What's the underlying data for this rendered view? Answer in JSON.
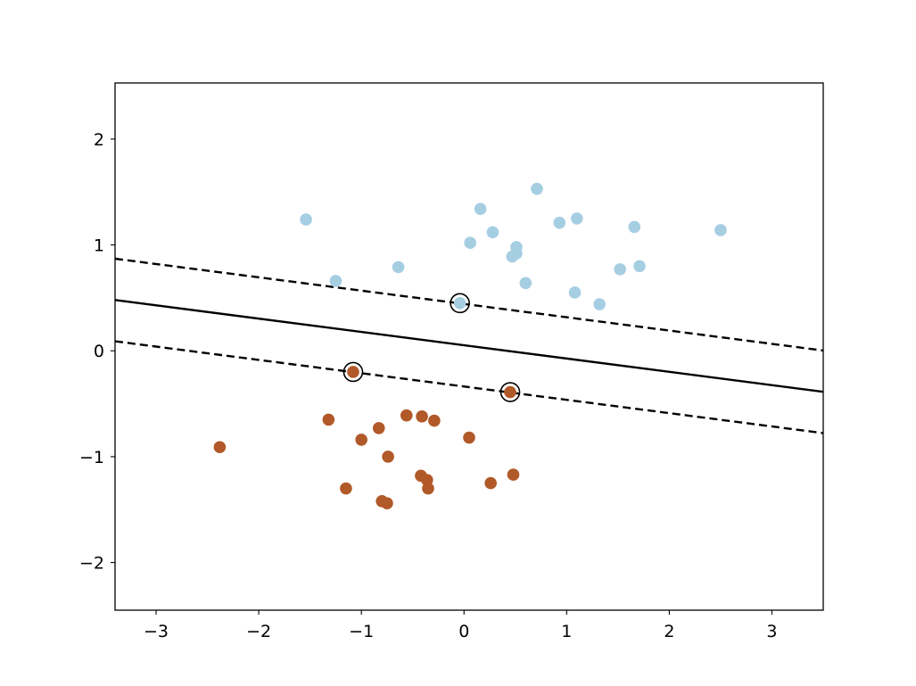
{
  "chart_data": {
    "type": "scatter",
    "title": "",
    "xlabel": "",
    "ylabel": "",
    "xlim": [
      -3.4,
      3.5
    ],
    "ylim": [
      -2.45,
      2.53
    ],
    "grid": false,
    "x_ticks": [
      {
        "value": -3,
        "label": "−3"
      },
      {
        "value": -2,
        "label": "−2"
      },
      {
        "value": -1,
        "label": "−1"
      },
      {
        "value": 0,
        "label": "0"
      },
      {
        "value": 1,
        "label": "1"
      },
      {
        "value": 2,
        "label": "2"
      },
      {
        "value": 3,
        "label": "3"
      }
    ],
    "y_ticks": [
      {
        "value": -2,
        "label": "−2"
      },
      {
        "value": -1,
        "label": "−1"
      },
      {
        "value": 0,
        "label": "0"
      },
      {
        "value": 1,
        "label": "1"
      },
      {
        "value": 2,
        "label": "2"
      }
    ],
    "series": [
      {
        "color": "#a6cee3",
        "points": [
          [
            -1.54,
            1.24
          ],
          [
            -1.25,
            0.66
          ],
          [
            -0.64,
            0.79
          ],
          [
            -0.04,
            0.45
          ],
          [
            0.06,
            1.02
          ],
          [
            0.16,
            1.34
          ],
          [
            0.28,
            1.12
          ],
          [
            0.47,
            0.89
          ],
          [
            0.51,
            0.98
          ],
          [
            0.51,
            0.92
          ],
          [
            0.6,
            0.64
          ],
          [
            0.71,
            1.53
          ],
          [
            0.93,
            1.21
          ],
          [
            1.08,
            0.55
          ],
          [
            1.1,
            1.25
          ],
          [
            1.32,
            0.44
          ],
          [
            1.52,
            0.77
          ],
          [
            1.66,
            1.17
          ],
          [
            1.71,
            0.8
          ],
          [
            2.5,
            1.14
          ]
        ]
      },
      {
        "color": "#b15928",
        "points": [
          [
            -2.38,
            -0.91
          ],
          [
            -1.32,
            -0.65
          ],
          [
            -1.15,
            -1.3
          ],
          [
            -1.08,
            -0.2
          ],
          [
            -1.0,
            -0.84
          ],
          [
            -0.83,
            -0.73
          ],
          [
            -0.8,
            -1.42
          ],
          [
            -0.75,
            -1.44
          ],
          [
            -0.74,
            -1.0
          ],
          [
            -0.56,
            -0.61
          ],
          [
            -0.42,
            -1.18
          ],
          [
            -0.41,
            -0.62
          ],
          [
            -0.36,
            -1.22
          ],
          [
            -0.35,
            -1.3
          ],
          [
            -0.29,
            -0.66
          ],
          [
            0.05,
            -0.82
          ],
          [
            0.26,
            -1.25
          ],
          [
            0.45,
            -0.39
          ],
          [
            0.48,
            -1.17
          ]
        ]
      }
    ],
    "decision_boundary": {
      "slope": -0.1257,
      "intercept": 0.0526,
      "style": "solid",
      "color": "#000000"
    },
    "margins": [
      {
        "slope": -0.1257,
        "intercept": 0.4426,
        "style": "dashed",
        "color": "#000000"
      },
      {
        "slope": -0.1257,
        "intercept": -0.3374,
        "style": "dashed",
        "color": "#000000"
      }
    ],
    "support_vectors": [
      [
        -0.04,
        0.45
      ],
      [
        -1.08,
        -0.2
      ],
      [
        0.45,
        -0.39
      ]
    ]
  }
}
